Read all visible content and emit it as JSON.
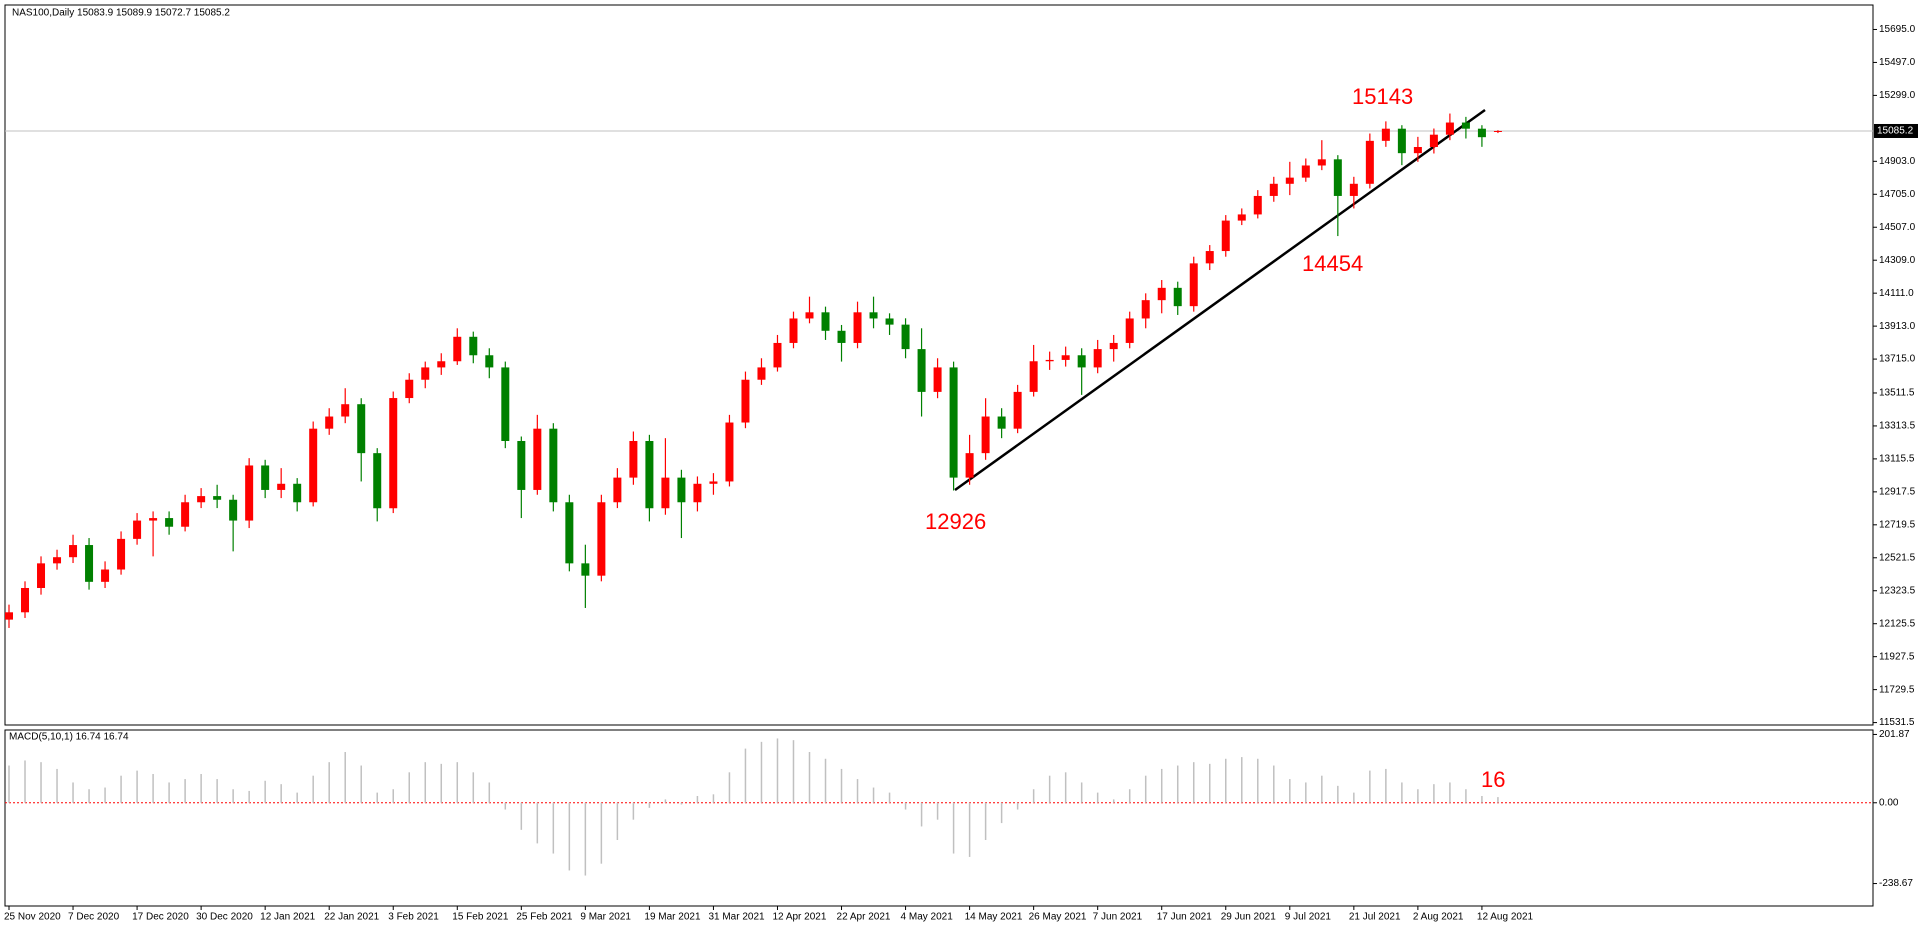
{
  "chart_data": [
    {
      "type": "candlestick",
      "title": "NAS100,Daily  15083.9 15089.9 15072.7 15085.2",
      "categories": [
        "25 Nov 2020",
        null,
        null,
        null,
        "7 Dec 2020",
        null,
        null,
        null,
        "17 Dec 2020",
        null,
        null,
        null,
        "30 Dec 2020",
        null,
        null,
        null,
        "12 Jan 2021",
        null,
        null,
        null,
        "22 Jan 2021",
        null,
        null,
        null,
        "3 Feb 2021",
        null,
        null,
        null,
        "15 Feb 2021",
        null,
        null,
        null,
        "25 Feb 2021",
        null,
        null,
        null,
        "9 Mar 2021",
        null,
        null,
        null,
        "19 Mar 2021",
        null,
        null,
        null,
        "31 Mar 2021",
        null,
        null,
        null,
        "12 Apr 2021",
        null,
        null,
        null,
        "22 Apr 2021",
        null,
        null,
        null,
        "4 May 2021",
        null,
        null,
        null,
        "14 May 2021",
        null,
        null,
        null,
        "26 May 2021",
        null,
        null,
        null,
        "7 Jun 2021",
        null,
        null,
        null,
        "17 Jun 2021",
        null,
        null,
        null,
        "29 Jun 2021",
        null,
        null,
        null,
        "9 Jul 2021",
        null,
        null,
        null,
        "21 Jul 2021",
        null,
        null,
        null,
        "2 Aug 2021",
        null,
        null,
        null,
        "12 Aug 2021",
        null
      ],
      "open": [
        12150,
        12194,
        12340,
        12488,
        12525,
        12598,
        12377,
        12451,
        12635,
        12745,
        12760,
        12708,
        12855,
        12892,
        12870,
        12745,
        13076,
        12929,
        12966,
        12855,
        13297,
        13370,
        13444,
        13150,
        12819,
        13481,
        13591,
        13665,
        13702,
        13849,
        13738,
        13665,
        13223,
        12929,
        13297,
        12855,
        12488,
        12414,
        12855,
        13003,
        13223,
        12819,
        13003,
        12855,
        12966,
        12980,
        13334,
        13591,
        13665,
        13812,
        13959,
        13996,
        13885,
        13812,
        13996,
        13959,
        13922,
        13775,
        13518,
        13665,
        13003,
        13150,
        13370,
        13297,
        13518,
        13702,
        13710,
        13738,
        13665,
        13775,
        13812,
        13959,
        14069,
        14143,
        14033,
        14290,
        14364,
        14547,
        14584,
        14695,
        14768,
        14805,
        14878,
        14915,
        14695,
        14768,
        15026,
        15099,
        14952,
        14989,
        15063,
        15136,
        15099,
        15083.9
      ],
      "high": [
        12240,
        12380,
        12530,
        12570,
        12660,
        12640,
        12500,
        12680,
        12790,
        12800,
        12800,
        12900,
        12940,
        12960,
        12900,
        13120,
        13110,
        13060,
        13000,
        13340,
        13420,
        13540,
        13480,
        13180,
        13520,
        13630,
        13700,
        13750,
        13900,
        13880,
        13780,
        13700,
        13250,
        13380,
        13330,
        12900,
        12600,
        12900,
        13060,
        13280,
        13260,
        13240,
        13050,
        13010,
        13030,
        13380,
        13640,
        13720,
        13860,
        14000,
        14090,
        14030,
        13920,
        14060,
        14090,
        13990,
        13960,
        13900,
        13720,
        13700,
        13260,
        13480,
        13420,
        13560,
        13800,
        13760,
        13790,
        13780,
        13830,
        13860,
        14000,
        14110,
        14190,
        14180,
        14330,
        14400,
        14580,
        14620,
        14730,
        14810,
        14900,
        14920,
        15030,
        14940,
        14810,
        15070,
        15143,
        15120,
        15050,
        15100,
        15190,
        15170,
        15120,
        15089.9
      ],
      "low": [
        12100,
        12160,
        12300,
        12450,
        12490,
        12330,
        12340,
        12420,
        12600,
        12530,
        12660,
        12680,
        12820,
        12820,
        12560,
        12700,
        12880,
        12880,
        12800,
        12830,
        13260,
        13330,
        12980,
        12740,
        12790,
        13450,
        13540,
        13620,
        13680,
        13690,
        13600,
        13180,
        12760,
        12900,
        12800,
        12440,
        12220,
        12380,
        12820,
        12960,
        12740,
        12780,
        12640,
        12800,
        12900,
        12950,
        13300,
        13560,
        13640,
        13780,
        13930,
        13830,
        13700,
        13780,
        13900,
        13860,
        13720,
        13370,
        13480,
        12926,
        12960,
        13110,
        13240,
        13270,
        13490,
        13650,
        13670,
        13500,
        13630,
        13700,
        13780,
        13900,
        13990,
        13980,
        14000,
        14250,
        14330,
        14520,
        14560,
        14660,
        14700,
        14780,
        14850,
        14454,
        14620,
        14740,
        14990,
        14880,
        14900,
        14950,
        15030,
        15040,
        14990,
        15072.7
      ],
      "close": [
        12194,
        12340,
        12488,
        12525,
        12598,
        12377,
        12451,
        12635,
        12745,
        12760,
        12708,
        12855,
        12892,
        12870,
        12745,
        13076,
        12929,
        12966,
        12855,
        13297,
        13370,
        13444,
        13150,
        12819,
        13481,
        13591,
        13665,
        13702,
        13849,
        13738,
        13665,
        13223,
        12929,
        13297,
        12855,
        12488,
        12414,
        12855,
        13003,
        13223,
        12819,
        13003,
        12855,
        12966,
        12980,
        13334,
        13591,
        13665,
        13812,
        13959,
        13996,
        13885,
        13812,
        13996,
        13959,
        13922,
        13775,
        13518,
        13665,
        13003,
        13150,
        13370,
        13297,
        13518,
        13702,
        13710,
        13738,
        13665,
        13775,
        13812,
        13959,
        14069,
        14143,
        14033,
        14290,
        14364,
        14547,
        14584,
        14695,
        14768,
        14805,
        14878,
        14915,
        14695,
        14768,
        15026,
        15099,
        14952,
        14989,
        15063,
        15136,
        15099,
        15048,
        15085.2
      ],
      "up_color": "#ff0000",
      "down_color": "#008000",
      "ylim": [
        11517,
        15842
      ],
      "yticks": [
        {
          "value": 15695,
          "label": "15695.0"
        },
        {
          "value": 15497,
          "label": "15497.0"
        },
        {
          "value": 15299,
          "label": "15299.0"
        },
        {
          "value": 14903,
          "label": "14903.0"
        },
        {
          "value": 14705,
          "label": "14705.0"
        },
        {
          "value": 14507,
          "label": "14507.0"
        },
        {
          "value": 14309,
          "label": "14309.0"
        },
        {
          "value": 14111,
          "label": "14111.0"
        },
        {
          "value": 13913,
          "label": "13913.0"
        },
        {
          "value": 13715,
          "label": "13715.0"
        },
        13511.5,
        13313.5,
        13115.5,
        12917.5,
        12719.5,
        12521.5,
        12323.5,
        12125.5,
        11927.5,
        11729.5,
        11531.5
      ],
      "current_price": 15085.2,
      "annotations": [
        15143,
        14454,
        12926
      ]
    },
    {
      "type": "bar",
      "title": "MACD(5,10,1) 16.74 16.74",
      "values": [
        110,
        125,
        120,
        100,
        60,
        40,
        45,
        80,
        95,
        85,
        60,
        70,
        85,
        70,
        40,
        35,
        65,
        55,
        30,
        80,
        120,
        150,
        110,
        30,
        40,
        90,
        120,
        115,
        120,
        90,
        60,
        -20,
        -80,
        -120,
        -150,
        -200,
        -215,
        -180,
        -110,
        -50,
        -15,
        10,
        -5,
        20,
        25,
        90,
        160,
        180,
        190,
        185,
        150,
        130,
        100,
        70,
        45,
        30,
        -20,
        -70,
        -50,
        -150,
        -160,
        -110,
        -60,
        -20,
        40,
        80,
        90,
        60,
        30,
        10,
        40,
        80,
        100,
        110,
        120,
        115,
        130,
        135,
        130,
        110,
        70,
        60,
        80,
        50,
        30,
        95,
        100,
        60,
        40,
        55,
        60,
        40,
        20,
        16.74
      ],
      "color": "#c0c0c0",
      "zero_line_color": "#ff0000",
      "ylim": [
        -305,
        215
      ],
      "yticks": [
        201.87,
        {
          "value": 0,
          "label": "0.00"
        },
        -238.67
      ],
      "annotations": [
        16
      ]
    }
  ]
}
